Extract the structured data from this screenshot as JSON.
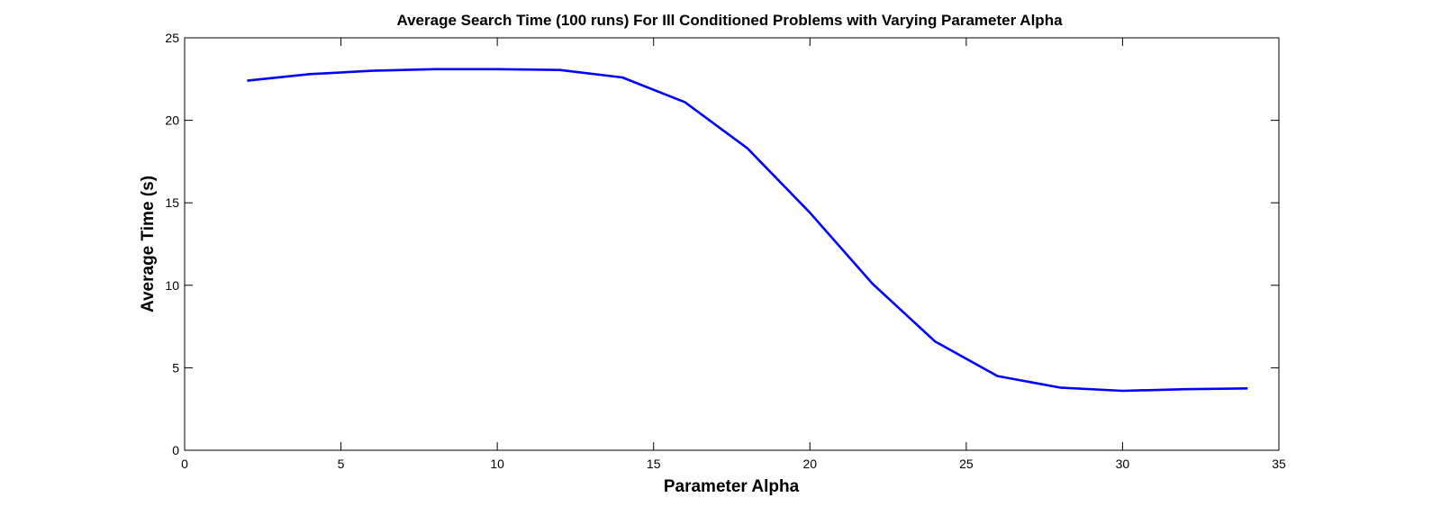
{
  "chart_data": {
    "type": "line",
    "title": "Average Search Time (100 runs) For Ill Conditioned Problems with Varying Parameter Alpha",
    "xlabel": "Parameter Alpha",
    "ylabel": "Average Time (s)",
    "xlim": [
      0,
      35
    ],
    "ylim": [
      0,
      25
    ],
    "xticks": [
      0,
      5,
      10,
      15,
      20,
      25,
      30,
      35
    ],
    "yticks": [
      0,
      5,
      10,
      15,
      20,
      25
    ],
    "grid": false,
    "legend": "none",
    "series": [
      {
        "color": "#0000ff",
        "x": [
          2,
          4,
          6,
          8,
          10,
          12,
          14,
          16,
          18,
          20,
          22,
          24,
          26,
          28,
          30,
          32,
          34
        ],
        "y": [
          22.4,
          22.8,
          23.0,
          23.1,
          23.1,
          23.05,
          22.6,
          21.1,
          18.3,
          14.4,
          10.1,
          6.6,
          4.5,
          3.8,
          3.6,
          3.7,
          3.75
        ]
      }
    ]
  }
}
